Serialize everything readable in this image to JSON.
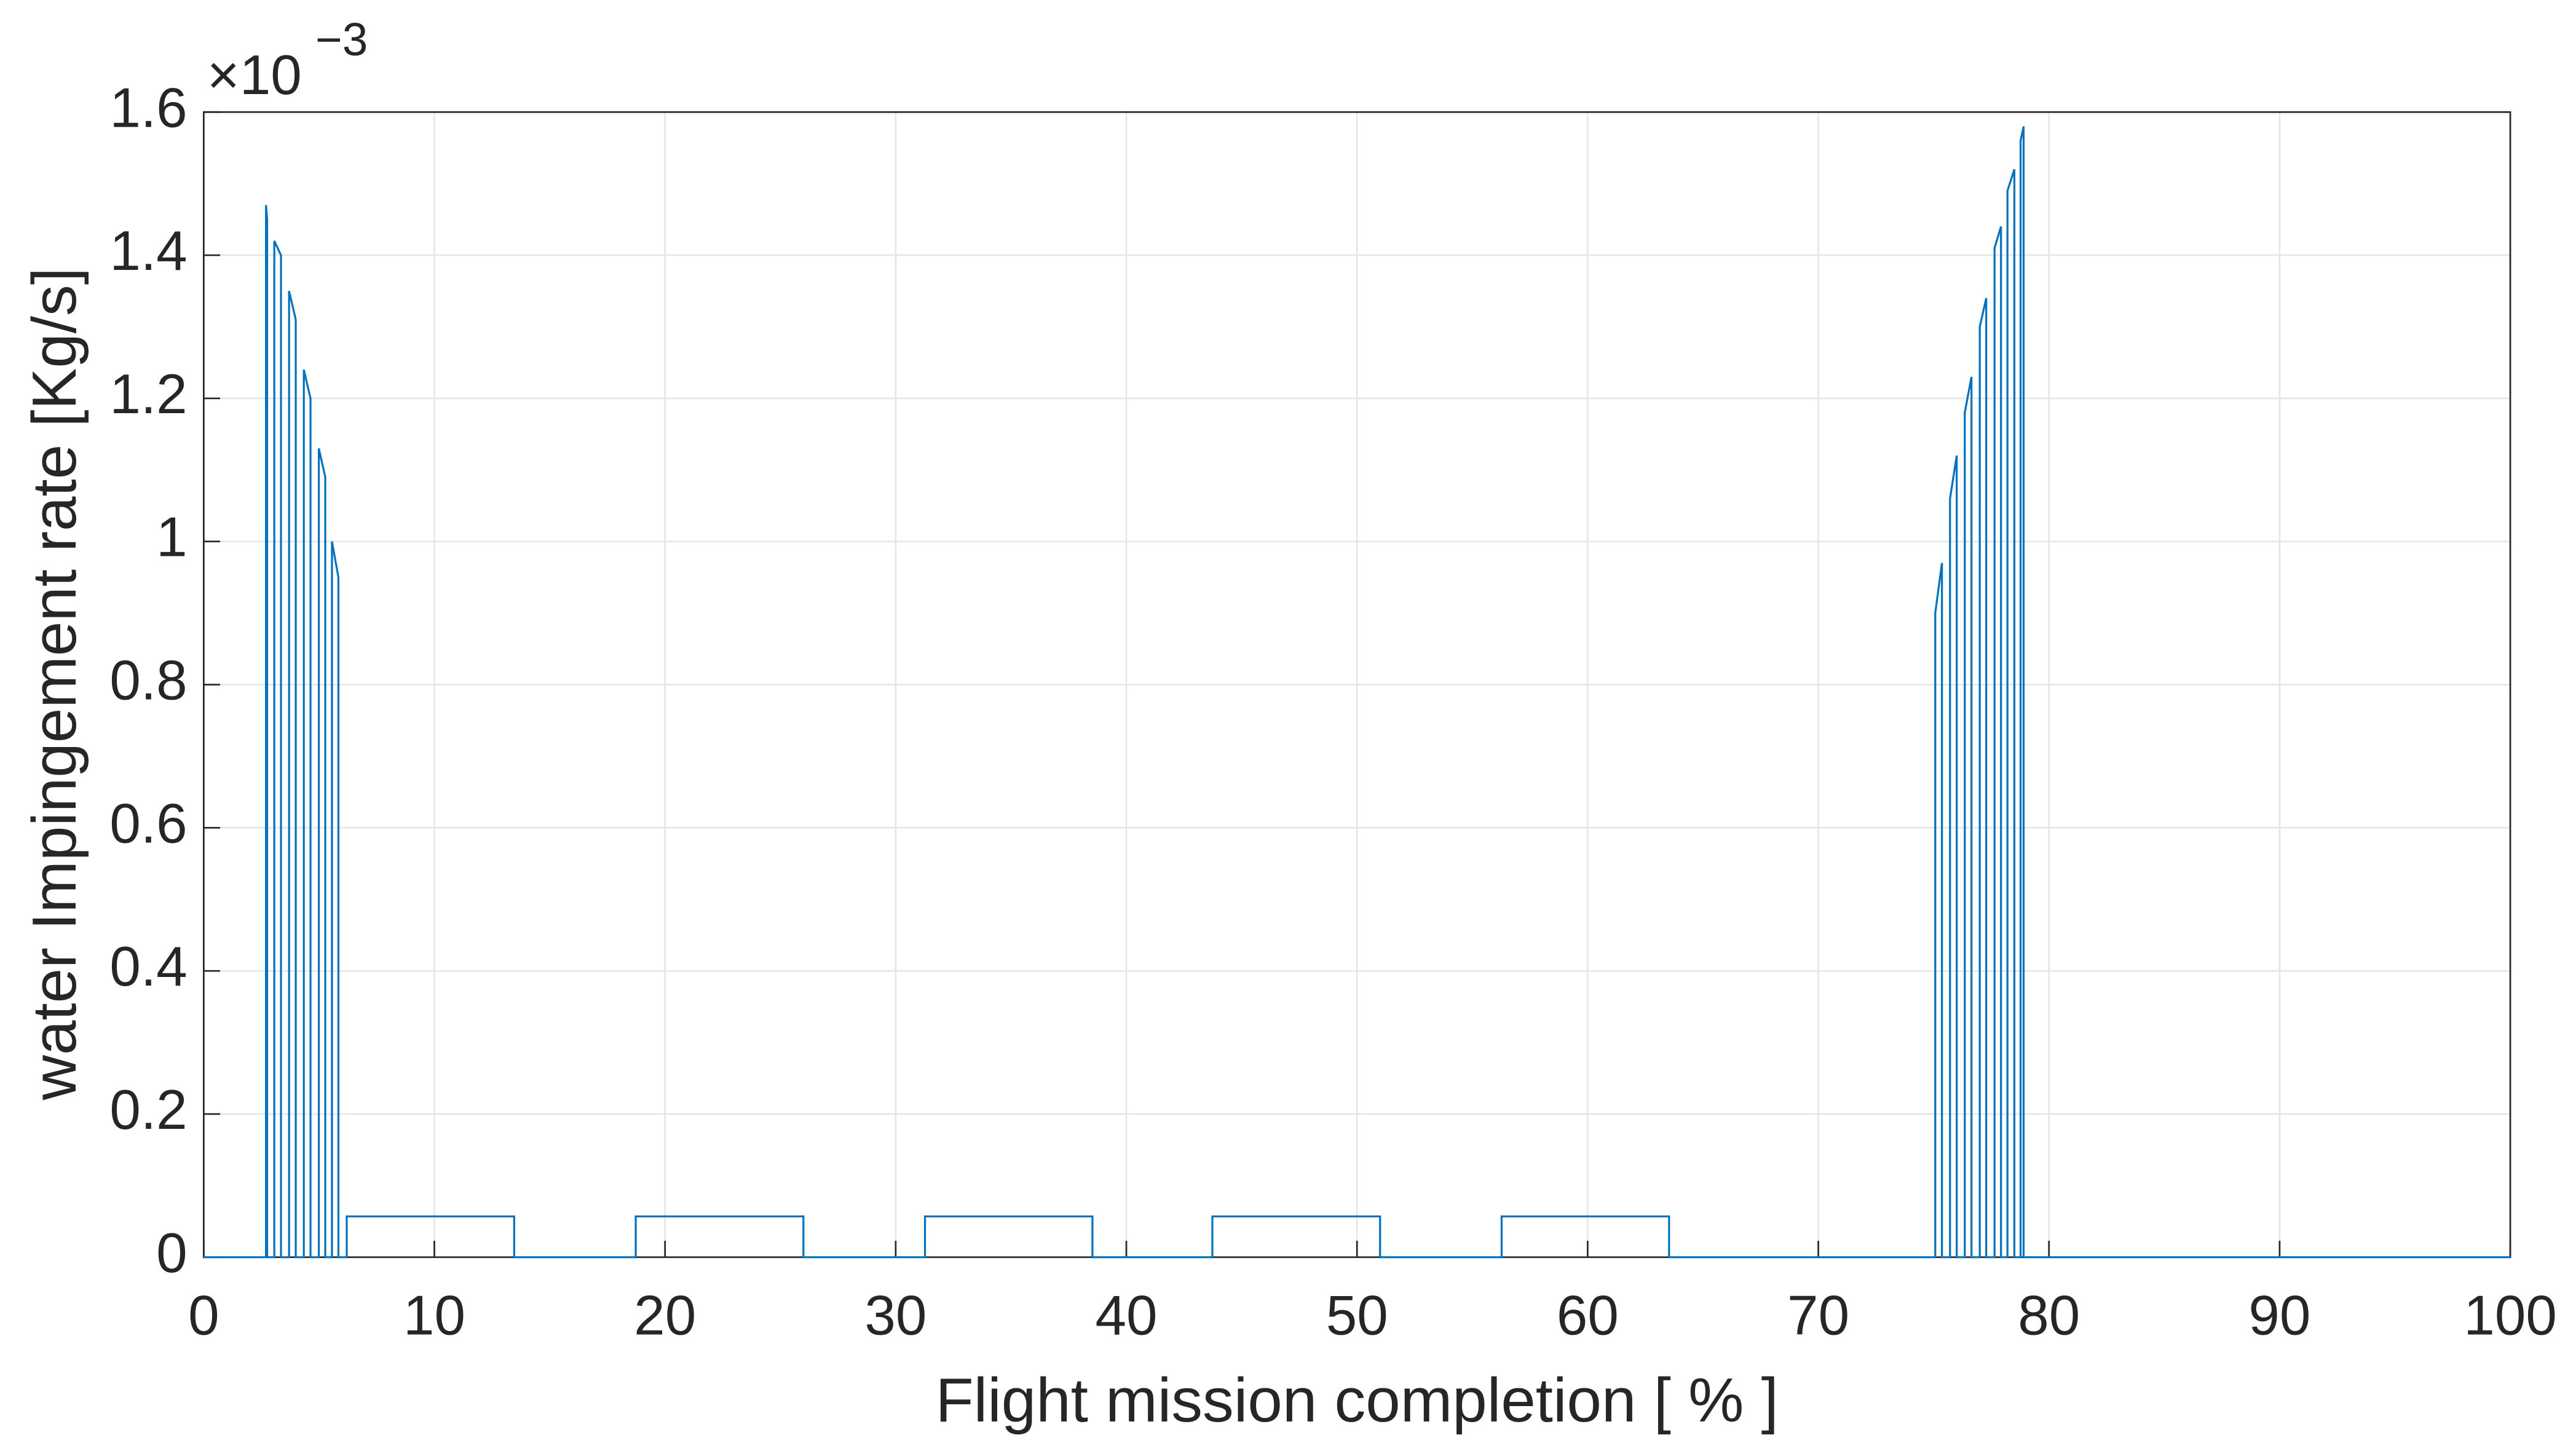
{
  "chart_data": {
    "type": "line",
    "xlabel": "Flight mission completion [ % ]",
    "ylabel": "water Impingement rate [Kg/s]",
    "y_scale_label": {
      "base": "×10",
      "exponent": "−3"
    },
    "x": [
      0,
      2.7,
      2.7,
      2.75,
      2.75,
      3.06,
      3.06,
      3.35,
      3.35,
      3.7,
      3.7,
      3.99,
      3.99,
      4.34,
      4.34,
      4.63,
      4.63,
      4.99,
      4.99,
      5.27,
      5.27,
      5.56,
      5.56,
      5.84,
      5.84,
      6.2,
      6.2,
      13.46,
      13.46,
      18.73,
      18.73,
      26.0,
      26.0,
      31.27,
      31.27,
      38.53,
      38.53,
      43.73,
      43.73,
      51.0,
      51.0,
      56.27,
      56.27,
      63.53,
      63.53,
      75.07,
      75.07,
      75.36,
      75.36,
      75.71,
      75.71,
      76.0,
      76.0,
      76.35,
      76.35,
      76.64,
      76.64,
      77.0,
      77.0,
      77.28,
      77.28,
      77.64,
      77.64,
      77.92,
      77.92,
      78.2,
      78.2,
      78.5,
      78.5,
      78.77,
      78.77,
      78.9,
      78.9,
      100
    ],
    "series": [
      {
        "color": "#0072bd",
        "values": [
          0,
          0,
          1.47,
          1.45,
          0,
          0,
          1.42,
          1.4,
          0,
          0,
          1.35,
          1.31,
          0,
          0,
          1.24,
          1.2,
          0,
          0,
          1.13,
          1.09,
          0,
          0,
          1.0,
          0.95,
          0,
          0,
          0.057,
          0.057,
          0,
          0,
          0.057,
          0.057,
          0,
          0,
          0.057,
          0.057,
          0,
          0,
          0.057,
          0.057,
          0,
          0,
          0.057,
          0.057,
          0,
          0,
          0.9,
          0.97,
          0,
          0,
          1.06,
          1.12,
          0,
          0,
          1.18,
          1.23,
          0,
          0,
          1.3,
          1.34,
          0,
          0,
          1.41,
          1.44,
          0,
          0,
          1.49,
          1.52,
          0,
          0,
          1.56,
          1.58,
          0,
          0
        ]
      }
    ],
    "xlim": [
      0,
      100
    ],
    "xticks": [
      0,
      10,
      20,
      30,
      40,
      50,
      60,
      70,
      80,
      90,
      100
    ],
    "ylim": [
      0,
      1.6
    ],
    "yticks": [
      0,
      0.2,
      0.4,
      0.6,
      0.8,
      1,
      1.2,
      1.4,
      1.6
    ],
    "grid": true
  }
}
